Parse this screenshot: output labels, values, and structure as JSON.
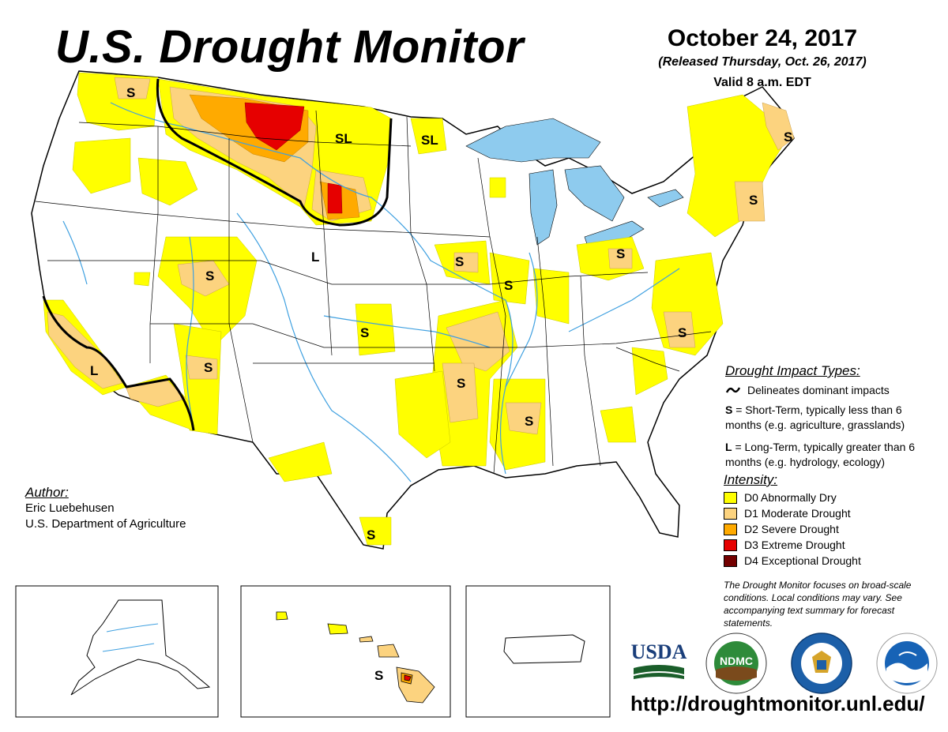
{
  "header": {
    "title": "U.S. Drought Monitor",
    "date": "October 24, 2017",
    "released": "(Released Thursday, Oct. 26, 2017)",
    "valid": "Valid 8 a.m. EDT"
  },
  "author": {
    "heading": "Author:",
    "name": "Eric Luebehusen",
    "org": "U.S. Department of Agriculture"
  },
  "impacts": {
    "heading": "Drought Impact Types:",
    "delineates": "Delineates dominant impacts",
    "short_key": "S",
    "short_text": " = Short-Term, typically less than 6 months (e.g. agriculture, grasslands)",
    "long_key": "L",
    "long_text": " = Long-Term, typically greater than 6 months (e.g. hydrology, ecology)"
  },
  "intensity": {
    "heading": "Intensity:",
    "levels": [
      {
        "label": "D0 Abnormally Dry",
        "color": "#ffff00"
      },
      {
        "label": "D1 Moderate Drought",
        "color": "#fcd37f"
      },
      {
        "label": "D2 Severe Drought",
        "color": "#ffaa00"
      },
      {
        "label": "D3 Extreme Drought",
        "color": "#e60000"
      },
      {
        "label": "D4 Exceptional Drought",
        "color": "#730000"
      }
    ]
  },
  "note": "The Drought Monitor focuses on broad-scale conditions. Local conditions may vary. See accompanying text summary for forecast statements.",
  "url": "http://droughtmonitor.unl.edu/",
  "map_labels": {
    "s_wa": "S",
    "sl_nd": "SL",
    "sl_mn": "SL",
    "s_me": "S",
    "s_ma": "S",
    "s_ia": "S",
    "s_il": "S",
    "s_oh": "S",
    "s_ut": "S",
    "l_wy": "L",
    "s_ks": "S",
    "s_az": "S",
    "l_ca": "L",
    "s_ar": "S",
    "s_ms": "S",
    "s_nc": "S",
    "s_tx": "S",
    "s_hi": "S"
  },
  "logos": {
    "usda": "USDA",
    "ndmc": "NDMC"
  },
  "colors": {
    "water": "#8ecbee",
    "river": "#3fa0e0",
    "d0": "#ffff00",
    "d1": "#fcd37f",
    "d2": "#ffaa00",
    "d3": "#e60000"
  }
}
